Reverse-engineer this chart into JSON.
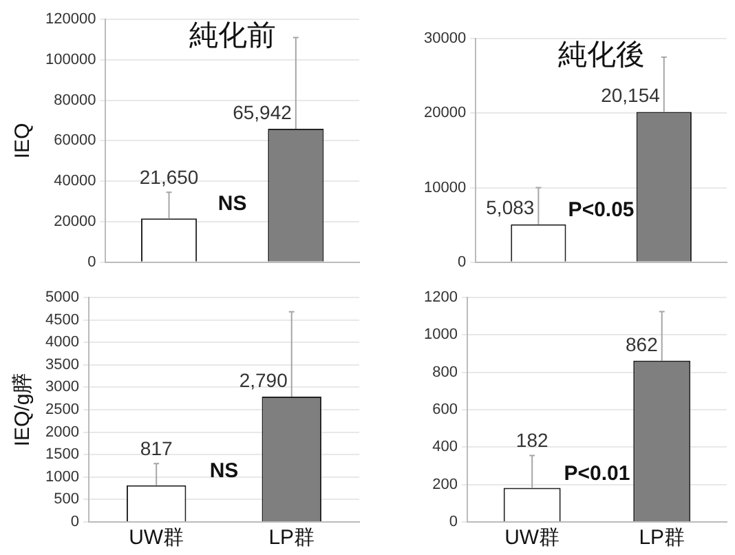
{
  "chart_data": [
    {
      "type": "bar",
      "title": "純化前",
      "ylabel": "IEQ",
      "categories": [
        null,
        null
      ],
      "values": [
        21650,
        65942
      ],
      "colors": [
        "#ffffff",
        "#7f7f7f"
      ],
      "errors": [
        [
          21650,
          34500
        ],
        [
          65942,
          111000
        ]
      ],
      "value_labels": [
        "21,650",
        "65,942"
      ],
      "annotations": [
        "NS"
      ],
      "ylim": [
        0,
        120000
      ],
      "yticks": [
        0,
        20000,
        40000,
        60000,
        80000,
        100000,
        120000
      ],
      "grid": "y",
      "tick_labels": "y"
    },
    {
      "type": "bar",
      "title": "純化後",
      "categories": [
        null,
        null
      ],
      "values": [
        5083,
        20154
      ],
      "colors": [
        "#ffffff",
        "#7f7f7f"
      ],
      "errors": [
        [
          5083,
          10000
        ],
        [
          20154,
          27500
        ]
      ],
      "value_labels": [
        "5,083",
        "20,154"
      ],
      "annotations": [
        "P<0.05"
      ],
      "ylim": [
        0,
        30000
      ],
      "yticks": [
        0,
        10000,
        20000,
        30000
      ],
      "grid": "y",
      "tick_labels": "y"
    },
    {
      "type": "bar",
      "ylabel": "IEQ/g膵",
      "categories": [
        "UW群",
        "LP群"
      ],
      "values": [
        817,
        2790
      ],
      "colors": [
        "#ffffff",
        "#7f7f7f"
      ],
      "errors": [
        [
          817,
          1300
        ],
        [
          2790,
          4680
        ]
      ],
      "value_labels": [
        "817",
        "2,790"
      ],
      "annotations": [
        "NS"
      ],
      "ylim": [
        0,
        5000
      ],
      "yticks": [
        0,
        500,
        1000,
        1500,
        2000,
        2500,
        3000,
        3500,
        4000,
        4500,
        5000
      ],
      "grid": "y"
    },
    {
      "type": "bar",
      "categories": [
        "UW群",
        "LP群"
      ],
      "values": [
        182,
        862
      ],
      "colors": [
        "#ffffff",
        "#7f7f7f"
      ],
      "errors": [
        [
          182,
          355
        ],
        [
          862,
          1125
        ]
      ],
      "value_labels": [
        "182",
        "862"
      ],
      "annotations": [
        "P<0.01"
      ],
      "ylim": [
        0,
        1200
      ],
      "yticks": [
        0,
        200,
        400,
        600,
        800,
        1000,
        1200
      ],
      "grid": "y"
    }
  ]
}
